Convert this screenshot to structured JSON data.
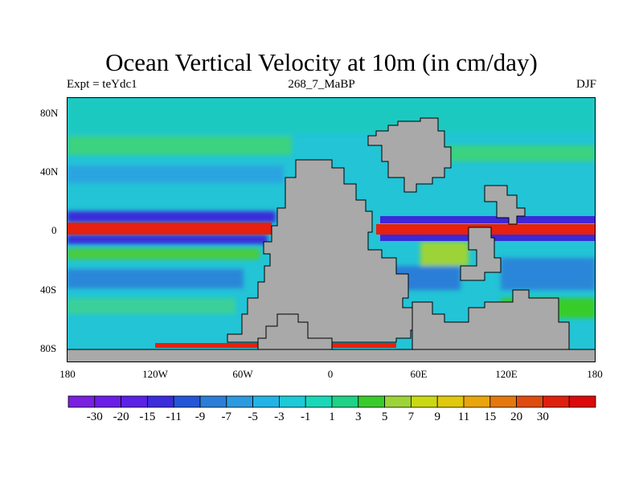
{
  "title": "Ocean Vertical Velocity at 10m (in cm/day)",
  "subtitle_left": "Expt = teYdc1",
  "subtitle_center": "268_7_MaBP",
  "subtitle_right": "DJF",
  "y_labels": [
    "80N",
    "40N",
    "0",
    "40S",
    "80S"
  ],
  "x_labels": [
    "180",
    "120W",
    "60W",
    "0",
    "60E",
    "120E",
    "180"
  ],
  "colorbar": {
    "colors": [
      "#7a20e0",
      "#6b1ee8",
      "#5a22e6",
      "#3b2cdc",
      "#2456d8",
      "#2a7ed8",
      "#2c9ae0",
      "#22b4e6",
      "#1ccad8",
      "#18d8b8",
      "#1ed286",
      "#38cc2a",
      "#9cd438",
      "#cad814",
      "#e0c80c",
      "#e8a50c",
      "#e4780e",
      "#e04c10",
      "#e0200e",
      "#dc0a0a"
    ],
    "labels": [
      "-30",
      "-20",
      "-15",
      "-11",
      "-9",
      "-7",
      "-5",
      "-3",
      "-1",
      "1",
      "3",
      "5",
      "7",
      "9",
      "11",
      "15",
      "20",
      "30"
    ]
  },
  "colors": {
    "ocean_base": "#22c4d6",
    "land": "#a9a9a9",
    "upwelling": "#e8200e",
    "downwelling": "#3a2ad8"
  }
}
